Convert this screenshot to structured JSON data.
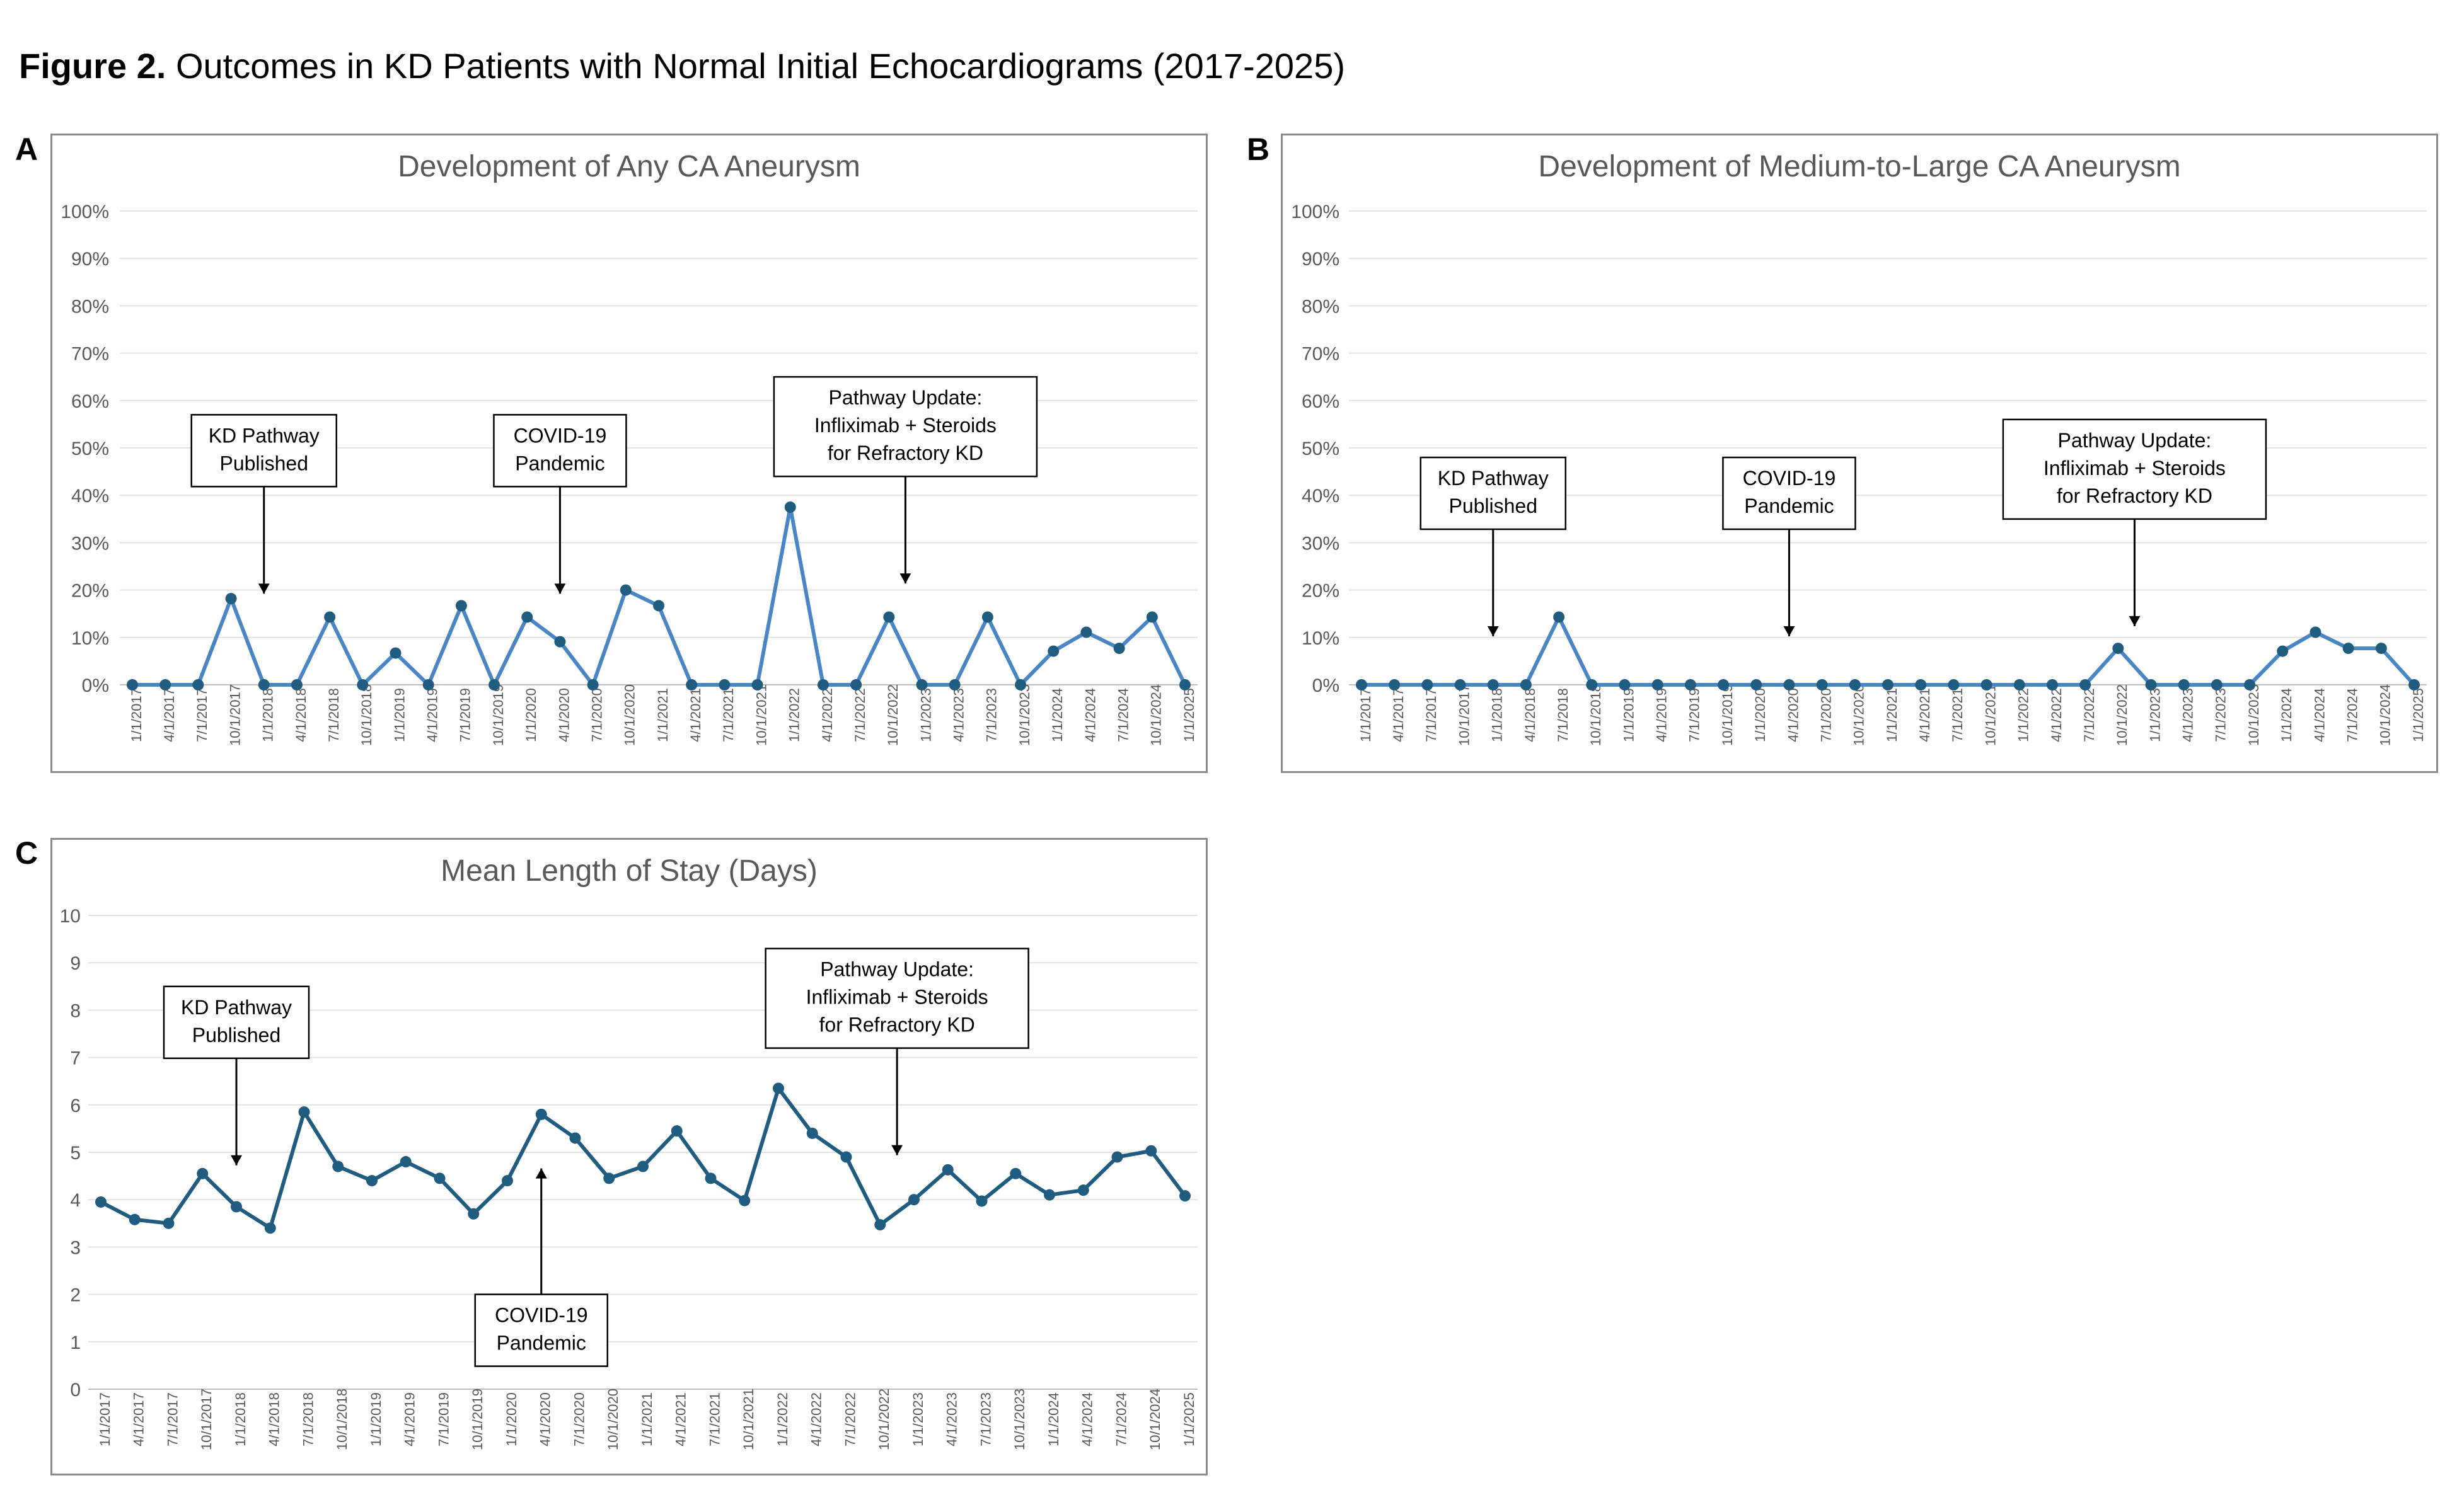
{
  "figure": {
    "label": "Figure 2.",
    "title": "Outcomes in KD Patients with Normal Initial Echocardiograms (2017-2025)"
  },
  "chart_data": [
    {
      "panel": "A",
      "type": "line",
      "title": "Development of Any CA Aneurysm",
      "ylim": [
        0,
        100
      ],
      "yticks": [
        "0%",
        "10%",
        "20%",
        "30%",
        "40%",
        "50%",
        "60%",
        "70%",
        "80%",
        "90%",
        "100%"
      ],
      "categories": [
        "1/1/2017",
        "4/1/2017",
        "7/1/2017",
        "10/1/2017",
        "1/1/2018",
        "4/1/2018",
        "7/1/2018",
        "10/1/2018",
        "1/1/2019",
        "4/1/2019",
        "7/1/2019",
        "10/1/2019",
        "1/1/2020",
        "4/1/2020",
        "7/1/2020",
        "10/1/2020",
        "1/1/2021",
        "4/1/2021",
        "7/1/2021",
        "10/1/2021",
        "1/1/2022",
        "4/1/2022",
        "7/1/2022",
        "10/1/2022",
        "1/1/2023",
        "4/1/2023",
        "7/1/2023",
        "10/1/2023",
        "1/1/2024",
        "4/1/2024",
        "7/1/2024",
        "10/1/2024",
        "1/1/2025"
      ],
      "values": [
        0,
        0,
        0,
        18.2,
        0,
        0,
        14.3,
        0,
        6.7,
        0,
        16.7,
        0,
        14.3,
        9.1,
        0,
        20,
        16.7,
        0,
        0,
        0,
        37.5,
        0,
        0,
        14.3,
        0,
        0,
        14.3,
        0,
        7.1,
        11.1,
        7.7,
        14.3,
        0
      ],
      "line_color": "#4a86c5",
      "marker_color": "#1f5c80",
      "annotations": [
        {
          "lines": [
            "KD Pathway",
            "Published"
          ],
          "index": 4,
          "direction": "down",
          "box_top_pct": 57
        },
        {
          "lines": [
            "COVID-19",
            "Pandemic"
          ],
          "index": 13,
          "direction": "down",
          "box_top_pct": 57
        },
        {
          "lines": [
            "Pathway Update:",
            "Infliximab + Steroids",
            "for Refractory KD"
          ],
          "index": 23.5,
          "direction": "down",
          "box_top_pct": 65
        }
      ]
    },
    {
      "panel": "B",
      "type": "line",
      "title": "Development of Medium-to-Large CA Aneurysm",
      "ylim": [
        0,
        100
      ],
      "yticks": [
        "0%",
        "10%",
        "20%",
        "30%",
        "40%",
        "50%",
        "60%",
        "70%",
        "80%",
        "90%",
        "100%"
      ],
      "categories": [
        "1/1/2017",
        "4/1/2017",
        "7/1/2017",
        "10/1/2017",
        "1/1/2018",
        "4/1/2018",
        "7/1/2018",
        "10/1/2018",
        "1/1/2019",
        "4/1/2019",
        "7/1/2019",
        "10/1/2019",
        "1/1/2020",
        "4/1/2020",
        "7/1/2020",
        "10/1/2020",
        "1/1/2021",
        "4/1/2021",
        "7/1/2021",
        "10/1/2021",
        "1/1/2022",
        "4/1/2022",
        "7/1/2022",
        "10/1/2022",
        "1/1/2023",
        "4/1/2023",
        "7/1/2023",
        "10/1/2023",
        "1/1/2024",
        "4/1/2024",
        "7/1/2024",
        "10/1/2024",
        "1/1/2025"
      ],
      "values": [
        0,
        0,
        0,
        0,
        0,
        0,
        14.3,
        0,
        0,
        0,
        0,
        0,
        0,
        0,
        0,
        0,
        0,
        0,
        0,
        0,
        0,
        0,
        0,
        7.7,
        0,
        0,
        0,
        0,
        7.1,
        11.1,
        7.7,
        7.7,
        0
      ],
      "line_color": "#4a86c5",
      "marker_color": "#1f5c80",
      "annotations": [
        {
          "lines": [
            "KD Pathway",
            "Published"
          ],
          "index": 4,
          "direction": "down",
          "box_top_pct": 48
        },
        {
          "lines": [
            "COVID-19",
            "Pandemic"
          ],
          "index": 13,
          "direction": "down",
          "box_top_pct": 48
        },
        {
          "lines": [
            "Pathway Update:",
            "Infliximab + Steroids",
            "for Refractory KD"
          ],
          "index": 23.5,
          "direction": "down",
          "box_top_pct": 56
        }
      ]
    },
    {
      "panel": "C",
      "type": "line",
      "title": "Mean Length of Stay (Days)",
      "ylim": [
        0,
        10
      ],
      "yticks": [
        "0",
        "1",
        "2",
        "3",
        "4",
        "5",
        "6",
        "7",
        "8",
        "9",
        "10"
      ],
      "categories": [
        "1/1/2017",
        "4/1/2017",
        "7/1/2017",
        "10/1/2017",
        "1/1/2018",
        "4/1/2018",
        "7/1/2018",
        "10/1/2018",
        "1/1/2019",
        "4/1/2019",
        "7/1/2019",
        "10/1/2019",
        "1/1/2020",
        "4/1/2020",
        "7/1/2020",
        "10/1/2020",
        "1/1/2021",
        "4/1/2021",
        "7/1/2021",
        "10/1/2021",
        "1/1/2022",
        "4/1/2022",
        "7/1/2022",
        "10/1/2022",
        "1/1/2023",
        "4/1/2023",
        "7/1/2023",
        "10/1/2023",
        "1/1/2024",
        "4/1/2024",
        "7/1/2024",
        "10/1/2024",
        "1/1/2025"
      ],
      "values": [
        3.95,
        3.58,
        3.5,
        4.55,
        3.85,
        3.4,
        5.85,
        4.7,
        4.4,
        4.8,
        4.45,
        3.7,
        4.4,
        5.8,
        5.3,
        4.45,
        4.7,
        5.45,
        4.45,
        3.98,
        6.35,
        5.4,
        4.9,
        3.47,
        4.0,
        4.63,
        3.97,
        4.55,
        4.1,
        4.2,
        4.9,
        5.03,
        4.08
      ],
      "line_color": "#1f5c80",
      "marker_color": "#1f5c80",
      "annotations": [
        {
          "lines": [
            "KD Pathway",
            "Published"
          ],
          "index": 4,
          "direction": "down",
          "box_top_pct": 85
        },
        {
          "lines": [
            "COVID-19",
            "Pandemic"
          ],
          "index": 13,
          "direction": "up",
          "box_top_pct": 20
        },
        {
          "lines": [
            "Pathway Update:",
            "Infliximab + Steroids",
            "for Refractory KD"
          ],
          "index": 23.5,
          "direction": "down",
          "box_top_pct": 93
        }
      ]
    }
  ]
}
